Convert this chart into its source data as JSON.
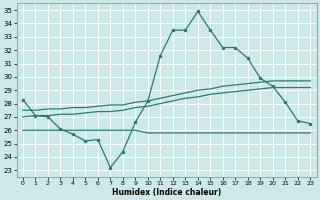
{
  "xlabel": "Humidex (Indice chaleur)",
  "bg_color": "#cde8e8",
  "grid_color": "#b0d8d8",
  "line_color": "#2a7a7a",
  "xlim": [
    -0.5,
    23.5
  ],
  "ylim": [
    22.5,
    35.5
  ],
  "yticks": [
    23,
    24,
    25,
    26,
    27,
    28,
    29,
    30,
    31,
    32,
    33,
    34,
    35
  ],
  "xticks": [
    0,
    1,
    2,
    3,
    4,
    5,
    6,
    7,
    8,
    9,
    10,
    11,
    12,
    13,
    14,
    15,
    16,
    17,
    18,
    19,
    20,
    21,
    22,
    23
  ],
  "line1_x": [
    0,
    1,
    2,
    3,
    4,
    5,
    6,
    7,
    8,
    9,
    10,
    11,
    12,
    13,
    14,
    15,
    16,
    17,
    18,
    19,
    20,
    21,
    22,
    23
  ],
  "line1_y": [
    28.3,
    27.1,
    27.0,
    26.1,
    25.7,
    25.2,
    25.3,
    23.2,
    24.4,
    26.6,
    28.2,
    31.6,
    33.5,
    33.5,
    34.9,
    33.5,
    32.2,
    32.2,
    31.4,
    29.9,
    29.3,
    28.1,
    26.7,
    26.5
  ],
  "line2_x": [
    0,
    1,
    2,
    3,
    4,
    5,
    6,
    7,
    8,
    9,
    10,
    11,
    12,
    13,
    14,
    15,
    16,
    17,
    18,
    19,
    20,
    21,
    22,
    23
  ],
  "line2_y": [
    27.0,
    27.1,
    27.1,
    27.2,
    27.2,
    27.3,
    27.4,
    27.4,
    27.5,
    27.7,
    27.8,
    28.0,
    28.2,
    28.4,
    28.5,
    28.7,
    28.8,
    28.9,
    29.0,
    29.1,
    29.2,
    29.2,
    29.2,
    29.2
  ],
  "line3_x": [
    0,
    1,
    2,
    3,
    4,
    5,
    6,
    7,
    8,
    9,
    10,
    11,
    12,
    13,
    14,
    15,
    16,
    17,
    18,
    19,
    20,
    21,
    22,
    23
  ],
  "line3_y": [
    27.5,
    27.5,
    27.6,
    27.6,
    27.7,
    27.7,
    27.8,
    27.9,
    27.9,
    28.1,
    28.2,
    28.4,
    28.6,
    28.8,
    29.0,
    29.1,
    29.3,
    29.4,
    29.5,
    29.6,
    29.7,
    29.7,
    29.7,
    29.7
  ],
  "line4_x": [
    0,
    1,
    2,
    3,
    4,
    5,
    6,
    7,
    8,
    9,
    10,
    11,
    12,
    13,
    14,
    15,
    16,
    17,
    18,
    19,
    20,
    21,
    22,
    23
  ],
  "line4_y": [
    26.0,
    26.0,
    26.0,
    26.0,
    26.0,
    26.0,
    26.0,
    26.0,
    26.0,
    26.0,
    25.8,
    25.8,
    25.8,
    25.8,
    25.8,
    25.8,
    25.8,
    25.8,
    25.8,
    25.8,
    25.8,
    25.8,
    25.8,
    25.8
  ]
}
